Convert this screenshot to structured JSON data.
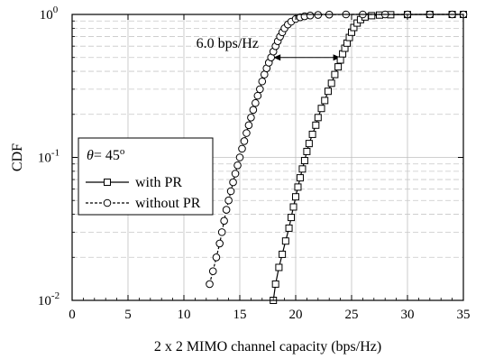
{
  "chart_data": {
    "type": "line",
    "xlabel": "2 x 2 MIMO channel capacity (bps/Hz)",
    "ylabel": "CDF",
    "xlim": [
      0,
      35
    ],
    "ylim": [
      0.01,
      1
    ],
    "yscale": "log",
    "xticks": [
      "0",
      "5",
      "10",
      "15",
      "20",
      "25",
      "30",
      "35"
    ],
    "yticks": [
      {
        "base": "10",
        "exp": "-2",
        "value": 0.01
      },
      {
        "base": "10",
        "exp": "-1",
        "value": 0.1
      },
      {
        "base": "10",
        "exp": "0",
        "value": 1
      }
    ],
    "grid": true,
    "legend": {
      "placement": "center-left",
      "title_symbol": "θ",
      "title_value": "= 45",
      "title_sup": "o",
      "entries": [
        "with PR",
        "without PR"
      ]
    },
    "annotation": {
      "text": "6.0 bps/Hz",
      "x_from": 18.0,
      "x_to": 24.0,
      "y": 0.5
    },
    "series": [
      {
        "name": "with PR",
        "marker": "square",
        "line": "solid",
        "x": [
          18.0,
          18.2,
          18.5,
          18.8,
          19.1,
          19.4,
          19.6,
          19.8,
          20.0,
          20.2,
          20.4,
          20.6,
          20.8,
          21.0,
          21.2,
          21.5,
          21.8,
          22.0,
          22.3,
          22.6,
          22.9,
          23.2,
          23.5,
          23.8,
          24.0,
          24.2,
          24.4,
          24.6,
          24.8,
          25.0,
          25.2,
          25.5,
          25.8,
          26.2,
          26.8,
          27.5,
          28.5,
          30.0,
          32.0,
          34.0,
          35.0
        ],
        "y": [
          0.01,
          0.013,
          0.017,
          0.021,
          0.026,
          0.032,
          0.038,
          0.045,
          0.053,
          0.062,
          0.072,
          0.083,
          0.095,
          0.11,
          0.125,
          0.145,
          0.168,
          0.19,
          0.22,
          0.25,
          0.29,
          0.33,
          0.38,
          0.43,
          0.48,
          0.53,
          0.58,
          0.63,
          0.69,
          0.75,
          0.81,
          0.87,
          0.92,
          0.96,
          0.98,
          0.99,
          0.995,
          0.998,
          1.0,
          1.0,
          1.0
        ]
      },
      {
        "name": "without PR",
        "marker": "circle",
        "line": "dashed",
        "x": [
          12.3,
          12.6,
          12.9,
          13.2,
          13.4,
          13.6,
          13.8,
          14.0,
          14.2,
          14.4,
          14.6,
          14.8,
          15.0,
          15.2,
          15.4,
          15.6,
          15.8,
          16.0,
          16.2,
          16.4,
          16.6,
          16.8,
          17.0,
          17.2,
          17.4,
          17.6,
          17.8,
          18.0,
          18.2,
          18.4,
          18.6,
          18.8,
          19.0,
          19.3,
          19.6,
          20.0,
          20.4,
          20.8,
          21.3,
          22.0,
          23.0,
          24.5,
          26.0,
          28.0,
          30.0,
          32.0,
          34.0,
          35.0
        ],
        "y": [
          0.013,
          0.016,
          0.02,
          0.025,
          0.03,
          0.036,
          0.043,
          0.05,
          0.058,
          0.067,
          0.077,
          0.088,
          0.1,
          0.115,
          0.13,
          0.148,
          0.168,
          0.19,
          0.215,
          0.24,
          0.27,
          0.3,
          0.34,
          0.38,
          0.42,
          0.46,
          0.5,
          0.55,
          0.6,
          0.65,
          0.7,
          0.75,
          0.8,
          0.85,
          0.89,
          0.93,
          0.955,
          0.97,
          0.983,
          0.992,
          0.997,
          1.0,
          1.0,
          1.0,
          1.0,
          1.0,
          1.0,
          1.0
        ]
      }
    ]
  }
}
